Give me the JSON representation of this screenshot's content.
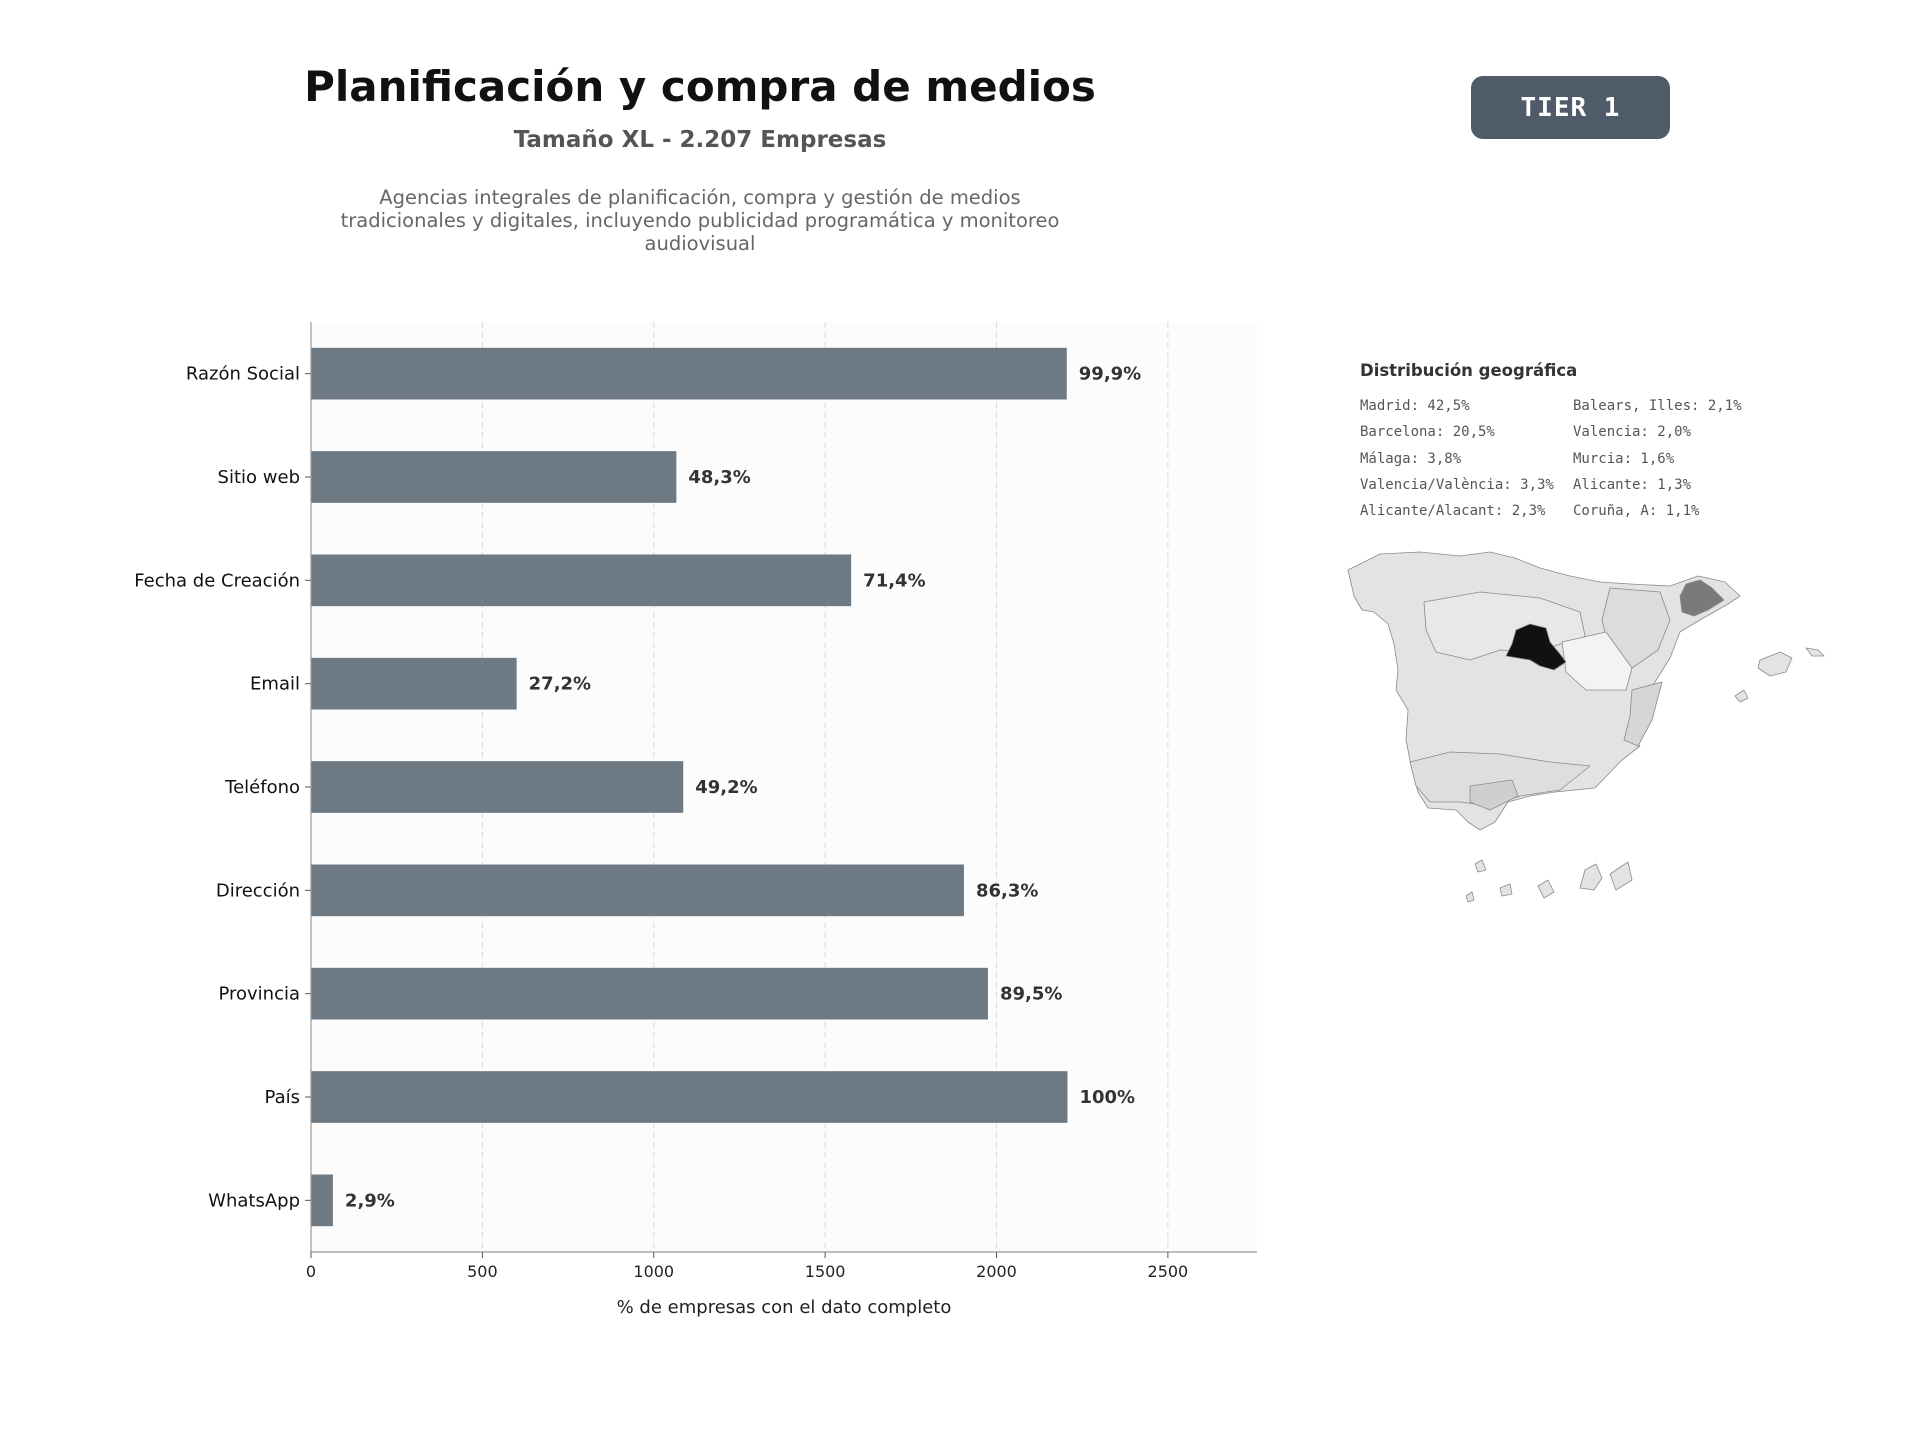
{
  "header": {
    "title": "Planificación y compra de medios",
    "subtitle": "Tamaño XL - 2.207 Empresas",
    "description": "Agencias integrales de planificación, compra y gestión de medios tradicionales y digitales, incluyendo publicidad programática y monitoreo audiovisual",
    "tier_label": "TIER 1"
  },
  "chart_data": {
    "type": "bar",
    "orientation": "horizontal",
    "categories": [
      "Razón Social",
      "Sitio web",
      "Fecha de Creación",
      "Email",
      "Teléfono",
      "Dirección",
      "Provincia",
      "País",
      "WhatsApp"
    ],
    "values": [
      2205,
      1066,
      1576,
      600,
      1086,
      1905,
      1975,
      2207,
      64
    ],
    "value_labels": [
      "99,9%",
      "48,3%",
      "71,4%",
      "27,2%",
      "49,2%",
      "86,3%",
      "89,5%",
      "100%",
      "2,9%"
    ],
    "xlabel": "% de empresas con el dato completo",
    "ylabel": "",
    "xlim": [
      0,
      2760
    ],
    "xticks": [
      0,
      500,
      1000,
      1500,
      2000,
      2500
    ],
    "grid": "vertical dashed",
    "bar_color": "#6e7a83"
  },
  "geo": {
    "title": "Distribución geográfica",
    "items": [
      "Madrid: 42,5%",
      "Barcelona: 20,5%",
      "Málaga: 3,8%",
      "Valencia/València: 3,3%",
      "Alicante/Alacant: 2,3%",
      "Balears, Illes: 2,1%",
      "Valencia: 2,0%",
      "Murcia: 1,6%",
      "Alicante: 1,3%",
      "Coruña, A: 1,1%"
    ],
    "colors": {
      "madrid": "#111111",
      "barcelona": "#7a7a7a",
      "default_region": "#e3e3e3",
      "light_region": "#f3f3f3",
      "border": "#8a8a8a"
    }
  }
}
